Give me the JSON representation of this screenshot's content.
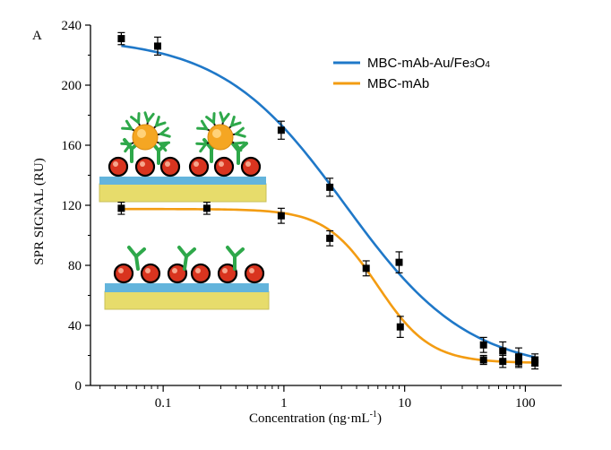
{
  "chart_data": {
    "type": "scatter",
    "panel_label": "A",
    "xlabel": "Concentration (ng·mL",
    "xlabel_sup": "-1",
    "xlabel_close": ")",
    "ylabel": "SPR SIGNAL (RU)",
    "x_scale": "log",
    "xlim": [
      0.025,
      200
    ],
    "ylim": [
      0,
      240
    ],
    "x_ticks": [
      0.1,
      1,
      10,
      100
    ],
    "x_tick_labels": [
      "0.1",
      "1",
      "10",
      "100"
    ],
    "y_ticks": [
      0,
      40,
      80,
      120,
      160,
      200,
      240
    ],
    "y_tick_labels": [
      "0",
      "40",
      "80",
      "120",
      "160",
      "200",
      "240"
    ],
    "grid": false,
    "legend_position": "top-right",
    "series": [
      {
        "name": "MBC-mAb-Au/Fe3O4",
        "name_parts": [
          "MBC-mAb-Au/Fe",
          "3",
          "O",
          "4"
        ],
        "color": "#1f78c8",
        "points": [
          {
            "x": 0.045,
            "y": 231,
            "err": 4
          },
          {
            "x": 0.09,
            "y": 226,
            "err": 6
          },
          {
            "x": 0.95,
            "y": 170,
            "err": 6
          },
          {
            "x": 2.4,
            "y": 132,
            "err": 6
          },
          {
            "x": 9.0,
            "y": 82,
            "err": 7
          },
          {
            "x": 45,
            "y": 27,
            "err": 5
          },
          {
            "x": 65,
            "y": 23,
            "err": 6
          },
          {
            "x": 88,
            "y": 19,
            "err": 6
          },
          {
            "x": 120,
            "y": 17,
            "err": 4
          }
        ],
        "fit": {
          "top": 232,
          "bottom": 9,
          "ec50": 3.2,
          "hill": 0.85
        }
      },
      {
        "name": "MBC-mAb",
        "name_parts": [
          "MBC-mAb"
        ],
        "color": "#f39c12",
        "points": [
          {
            "x": 0.045,
            "y": 118,
            "err": 4
          },
          {
            "x": 0.23,
            "y": 118,
            "err": 4
          },
          {
            "x": 0.95,
            "y": 113,
            "err": 5
          },
          {
            "x": 2.4,
            "y": 98,
            "err": 5
          },
          {
            "x": 4.8,
            "y": 78,
            "err": 5
          },
          {
            "x": 9.2,
            "y": 39,
            "err": 7
          },
          {
            "x": 45,
            "y": 17,
            "err": 3
          },
          {
            "x": 65,
            "y": 16,
            "err": 4
          },
          {
            "x": 88,
            "y": 16,
            "err": 4
          },
          {
            "x": 120,
            "y": 15,
            "err": 4
          }
        ],
        "fit": {
          "top": 117.5,
          "bottom": 15,
          "ec50": 6.0,
          "hill": 2.0
        }
      }
    ]
  }
}
